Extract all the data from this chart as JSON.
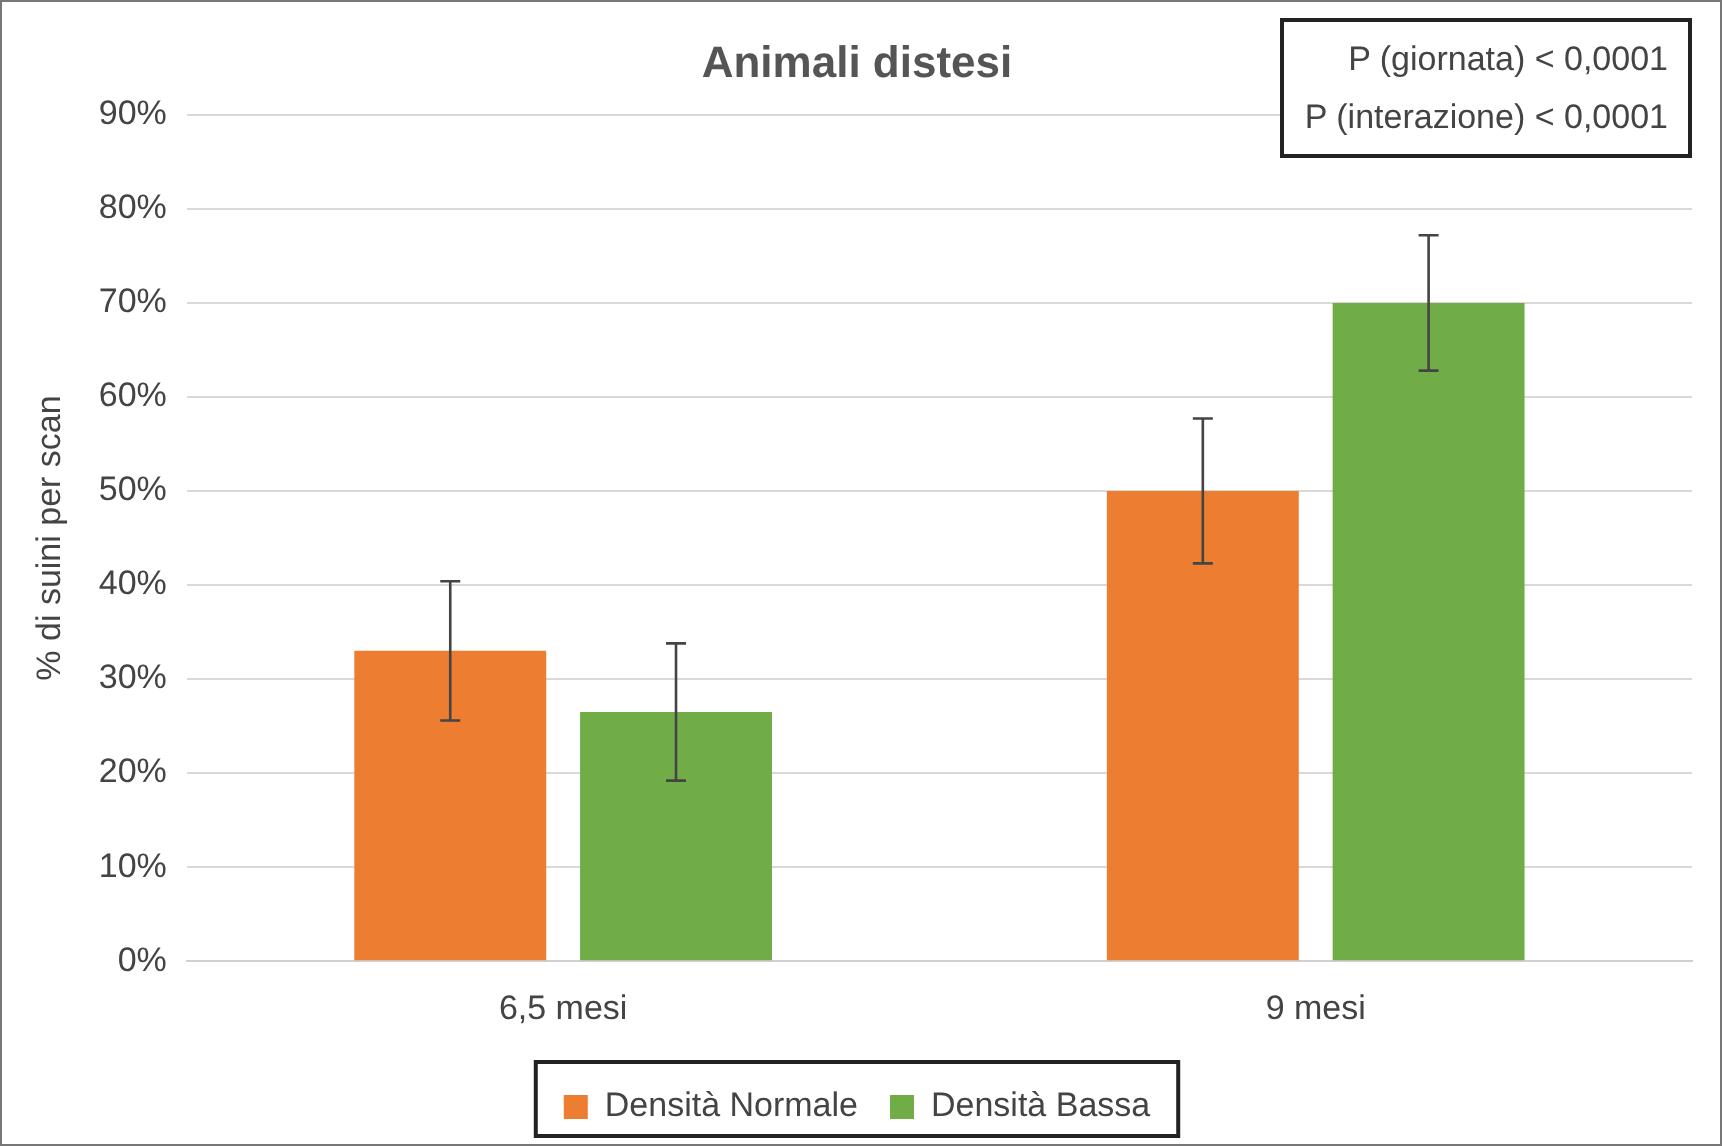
{
  "chart_data": {
    "type": "bar",
    "title": "Animali distesi",
    "ylabel": "% di suini per scan",
    "categories": [
      "6,5 mesi",
      "9 mesi"
    ],
    "series": [
      {
        "name": "Densità Normale",
        "color": "#ed7d31",
        "values": [
          33,
          50
        ],
        "errors": [
          7.4,
          7.7
        ]
      },
      {
        "name": "Densità Bassa",
        "color": "#70ad47",
        "values": [
          26.5,
          70
        ],
        "errors": [
          7.3,
          7.2
        ]
      }
    ],
    "ylim": [
      0,
      90
    ],
    "yticks": [
      {
        "value": 0,
        "label": "0%"
      },
      {
        "value": 10,
        "label": "10%"
      },
      {
        "value": 20,
        "label": "20%"
      },
      {
        "value": 30,
        "label": "30%"
      },
      {
        "value": 40,
        "label": "40%"
      },
      {
        "value": 50,
        "label": "50%"
      },
      {
        "value": 60,
        "label": "60%"
      },
      {
        "value": 70,
        "label": "70%"
      },
      {
        "value": 80,
        "label": "80%"
      },
      {
        "value": 90,
        "label": "90%"
      }
    ],
    "grid": "y",
    "legend": "bottom",
    "annotations": [
      "P (giornata) < 0,0001",
      "P (interazione) < 0,0001"
    ]
  }
}
